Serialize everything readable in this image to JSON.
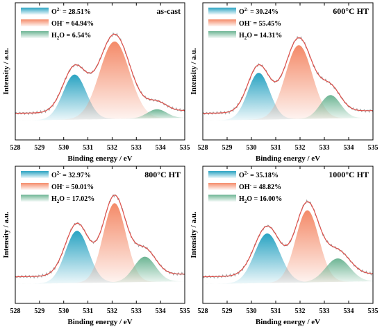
{
  "chart_data": [
    {
      "type": "area",
      "panel_label": "as-cast",
      "xlabel": "Binding energy / eV",
      "ylabel": "Intensity / a.u.",
      "xlim": [
        528,
        535
      ],
      "xticks": [
        "528",
        "529",
        "530",
        "531",
        "532",
        "533",
        "534",
        "535"
      ],
      "series": [
        {
          "name_base": "O",
          "name_sup": "2-",
          "value_text": "= 28.51%",
          "color": "#2aa3c2",
          "center": 530.45,
          "width": 0.48,
          "amp": 0.5
        },
        {
          "name_base": "OH",
          "name_sup": "-",
          "value_text": "= 64.94%",
          "color": "#f48a68",
          "center": 532.1,
          "width": 0.62,
          "amp": 0.86
        },
        {
          "name_base": "H",
          "name_sub": "2",
          "name_tail": "O",
          "value_text": "= 6.54%",
          "color": "#6db594",
          "center": 533.85,
          "width": 0.4,
          "amp": 0.1
        }
      ]
    },
    {
      "type": "area",
      "panel_label": "600°C HT",
      "xlabel": "Binding energy / eV",
      "ylabel": "Intensity / a.u.",
      "xlim": [
        528,
        535
      ],
      "xticks": [
        "528",
        "529",
        "530",
        "531",
        "532",
        "533",
        "534",
        "535"
      ],
      "series": [
        {
          "name_base": "O",
          "name_sup": "2-",
          "value_text": "= 30.24%",
          "color": "#2aa3c2",
          "center": 530.3,
          "width": 0.45,
          "amp": 0.52
        },
        {
          "name_base": "OH",
          "name_sup": "-",
          "value_text": "= 55.45%",
          "color": "#f48a68",
          "center": 531.95,
          "width": 0.55,
          "amp": 0.82
        },
        {
          "name_base": "H",
          "name_sub": "2",
          "name_tail": "O",
          "value_text": "= 14.31%",
          "color": "#6db594",
          "center": 533.25,
          "width": 0.42,
          "amp": 0.26
        }
      ]
    },
    {
      "type": "area",
      "panel_label": "800°C HT",
      "xlabel": "Binding energy / eV",
      "ylabel": "Intensity / a.u.",
      "xlim": [
        528,
        535
      ],
      "xticks": [
        "528",
        "529",
        "530",
        "531",
        "532",
        "533",
        "534",
        "535"
      ],
      "series": [
        {
          "name_base": "O",
          "name_sup": "2-",
          "value_text": "= 32.97%",
          "color": "#2aa3c2",
          "center": 530.55,
          "width": 0.48,
          "amp": 0.58
        },
        {
          "name_base": "OH",
          "name_sup": "-",
          "value_text": "= 50.01%",
          "color": "#f48a68",
          "center": 532.1,
          "width": 0.47,
          "amp": 0.88
        },
        {
          "name_base": "H",
          "name_sub": "2",
          "name_tail": "O",
          "value_text": "= 17.02%",
          "color": "#6db594",
          "center": 533.35,
          "width": 0.45,
          "amp": 0.28
        }
      ]
    },
    {
      "type": "area",
      "panel_label": "1000°C HT",
      "xlabel": "Binding energy / eV",
      "ylabel": "Intensity / a.u.",
      "xlim": [
        528,
        535
      ],
      "xticks": [
        "528",
        "529",
        "530",
        "531",
        "532",
        "533",
        "534",
        "535"
      ],
      "series": [
        {
          "name_base": "O",
          "name_sup": "2-",
          "value_text": "= 35.18%",
          "color": "#2aa3c2",
          "center": 530.65,
          "width": 0.52,
          "amp": 0.55
        },
        {
          "name_base": "OH",
          "name_sup": "-",
          "value_text": "= 48.82%",
          "color": "#f48a68",
          "center": 532.3,
          "width": 0.48,
          "amp": 0.8
        },
        {
          "name_base": "H",
          "name_sub": "2",
          "name_tail": "O",
          "value_text": "= 16.00%",
          "color": "#6db594",
          "center": 533.55,
          "width": 0.5,
          "amp": 0.26
        }
      ]
    }
  ]
}
